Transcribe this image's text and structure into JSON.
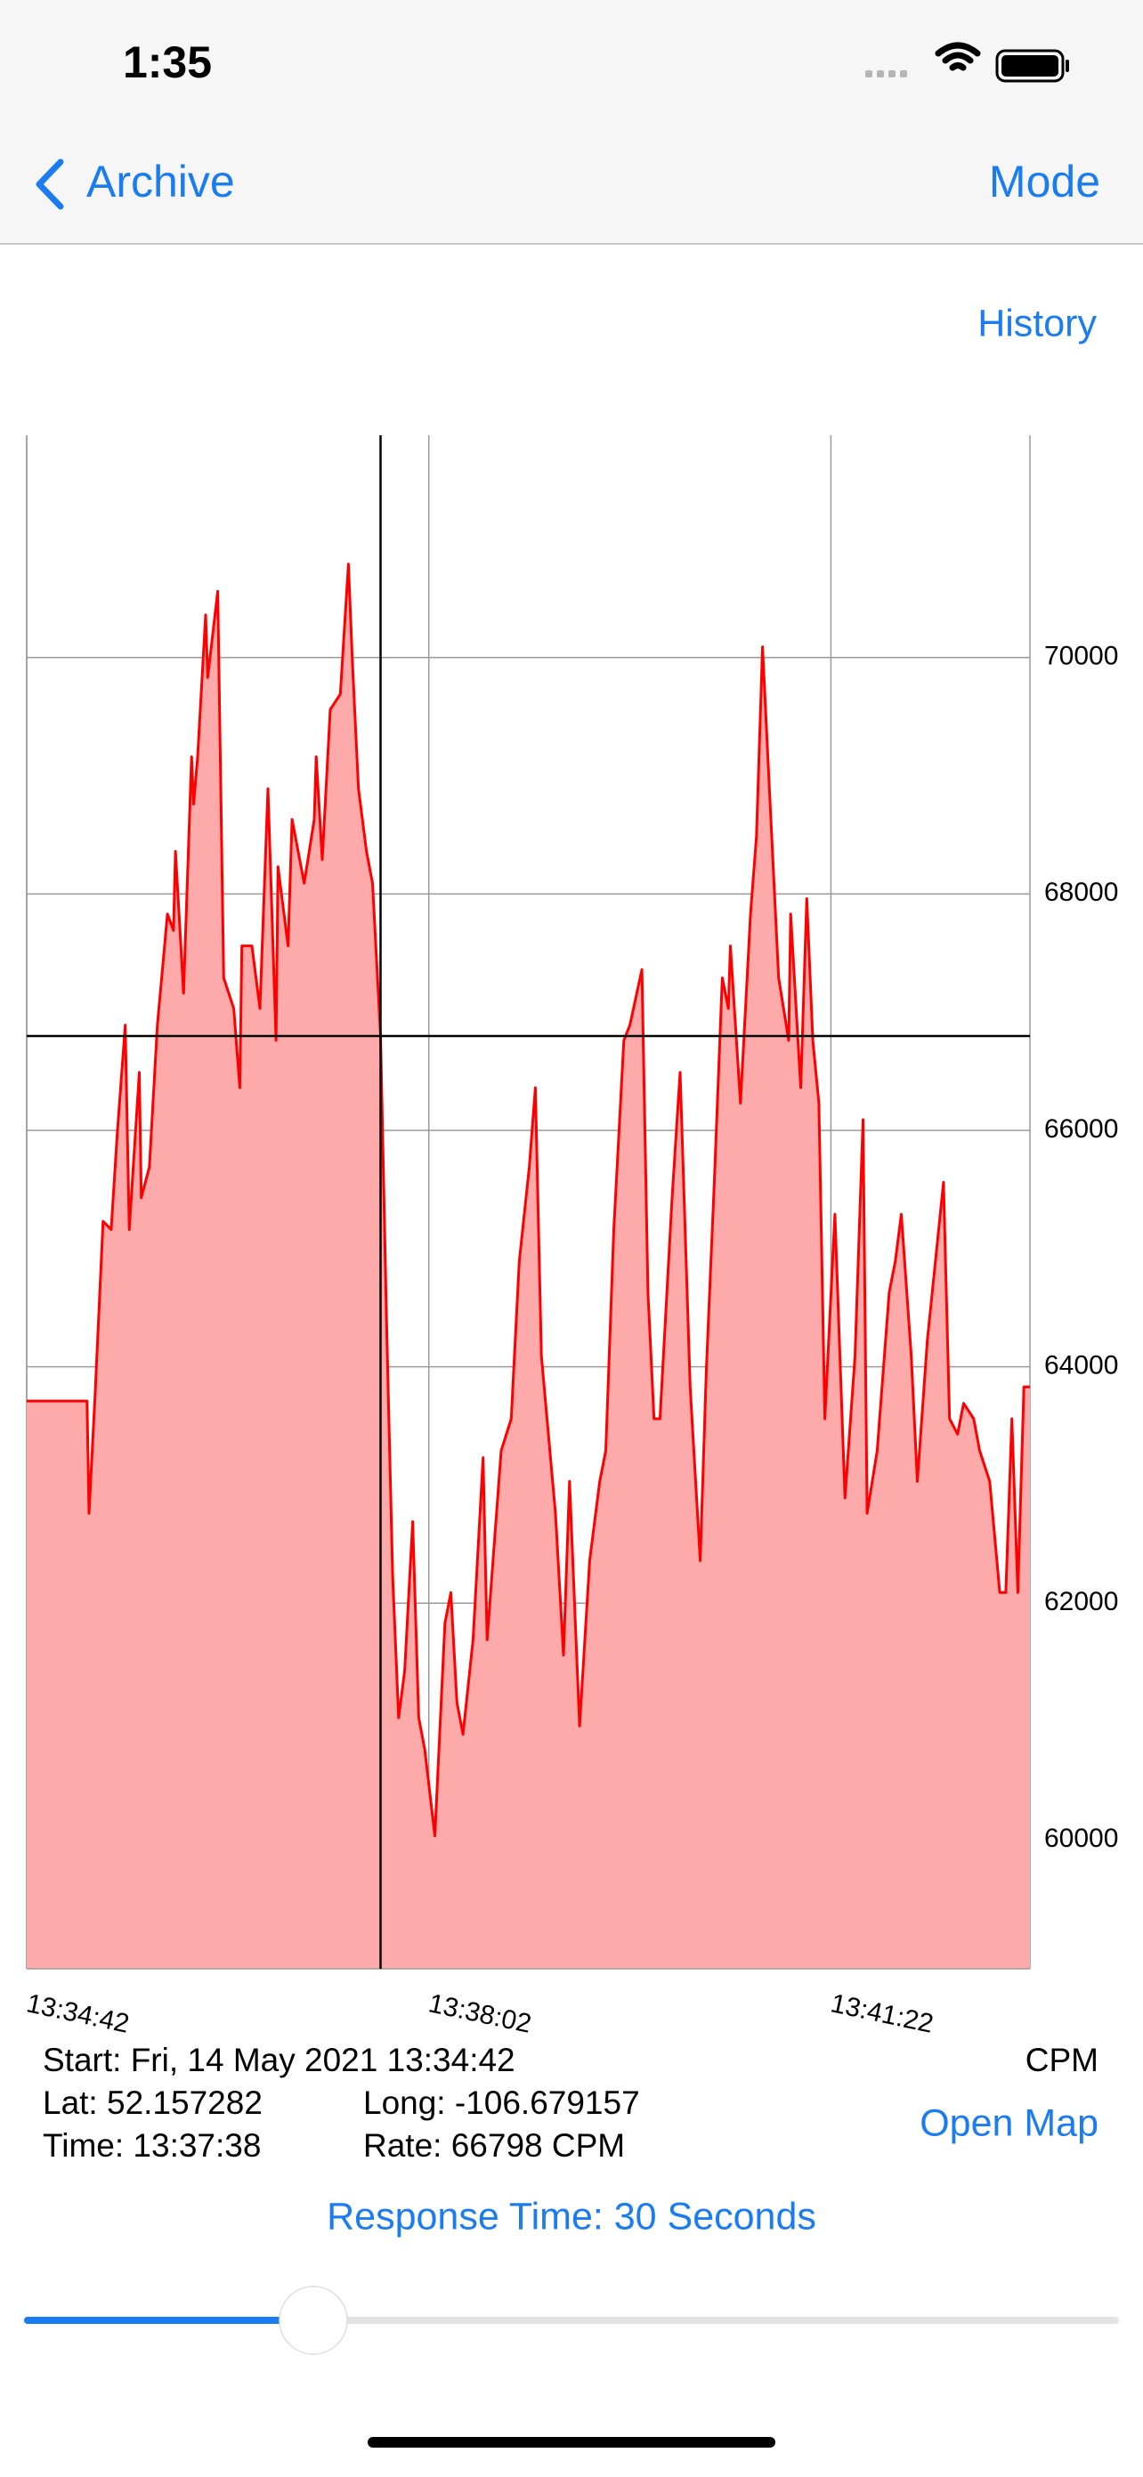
{
  "status_bar": {
    "time": "1:35"
  },
  "nav": {
    "back": "Archive",
    "right": "Mode"
  },
  "history_link": "History",
  "chart_data": {
    "type": "area",
    "y_label": "CPM",
    "x": [
      "13:34:42",
      "13:35:12",
      "13:35:13",
      "13:35:16",
      "13:35:20",
      "13:35:24",
      "13:35:27",
      "13:35:31",
      "13:35:33",
      "13:35:38",
      "13:35:39",
      "13:35:43",
      "13:35:47",
      "13:35:52",
      "13:35:55",
      "13:35:56",
      "13:36:00",
      "13:36:04",
      "13:36:05",
      "13:36:07",
      "13:36:11",
      "13:36:12",
      "13:36:17",
      "13:36:20",
      "13:36:25",
      "13:36:28",
      "13:36:29",
      "13:36:34",
      "13:36:38",
      "13:36:42",
      "13:36:46",
      "13:36:47",
      "13:36:52",
      "13:36:54",
      "13:37:00",
      "13:37:05",
      "13:37:06",
      "13:37:09",
      "13:37:13",
      "13:37:18",
      "13:37:22",
      "13:37:24",
      "13:37:27",
      "13:37:31",
      "13:37:34",
      "13:37:38",
      "13:37:41",
      "13:37:44",
      "13:37:47",
      "13:37:50",
      "13:37:54",
      "13:37:57",
      "13:38:00",
      "13:38:05",
      "13:38:10",
      "13:38:13",
      "13:38:16",
      "13:38:19",
      "13:38:24",
      "13:38:29",
      "13:38:31",
      "13:38:38",
      "13:38:43",
      "13:38:47",
      "13:38:52",
      "13:38:55",
      "13:38:58",
      "13:39:05",
      "13:39:09",
      "13:39:12",
      "13:39:17",
      "13:39:22",
      "13:39:27",
      "13:39:30",
      "13:39:34",
      "13:39:39",
      "13:39:42",
      "13:39:48",
      "13:39:51",
      "13:39:54",
      "13:39:57",
      "13:40:03",
      "13:40:07",
      "13:40:10",
      "13:40:12",
      "13:40:17",
      "13:40:20",
      "13:40:24",
      "13:40:28",
      "13:40:31",
      "13:40:32",
      "13:40:37",
      "13:40:42",
      "13:40:45",
      "13:40:48",
      "13:40:51",
      "13:40:56",
      "13:41:01",
      "13:41:02",
      "13:41:07",
      "13:41:10",
      "13:41:13",
      "13:41:16",
      "13:41:19",
      "13:41:24",
      "13:41:29",
      "13:41:34",
      "13:41:38",
      "13:41:40",
      "13:41:45",
      "13:41:51",
      "13:41:54",
      "13:41:57",
      "13:42:02",
      "13:42:05",
      "13:42:10",
      "13:42:14",
      "13:42:18",
      "13:42:21",
      "13:42:25",
      "13:42:28",
      "13:42:33",
      "13:42:36",
      "13:42:41",
      "13:42:46",
      "13:42:49",
      "13:42:52",
      "13:42:55",
      "13:42:58",
      "13:43:01"
    ],
    "values": [
      63710,
      63710,
      62760,
      63760,
      65230,
      65160,
      65960,
      66890,
      65160,
      66490,
      65430,
      65690,
      66890,
      67830,
      67690,
      68360,
      67160,
      69160,
      68760,
      69160,
      70360,
      69830,
      70560,
      67290,
      67030,
      66360,
      67560,
      67560,
      67030,
      68890,
      66760,
      68230,
      67560,
      68630,
      68090,
      68630,
      69160,
      68290,
      69560,
      69690,
      70790,
      69960,
      68890,
      68360,
      68090,
      66798,
      64360,
      62230,
      61030,
      61430,
      62690,
      61030,
      60760,
      60030,
      61830,
      62090,
      61160,
      60890,
      61690,
      63230,
      61690,
      63290,
      63560,
      64890,
      65690,
      66360,
      64090,
      62760,
      61560,
      63030,
      60960,
      62360,
      63030,
      63290,
      65160,
      66760,
      66890,
      67360,
      64630,
      63560,
      63560,
      65430,
      66490,
      64890,
      63830,
      62360,
      63960,
      65560,
      67290,
      67030,
      67560,
      66230,
      67830,
      68490,
      70090,
      69030,
      67290,
      66760,
      67830,
      66360,
      67960,
      66760,
      66230,
      63560,
      65290,
      62890,
      64090,
      66090,
      62760,
      63290,
      64630,
      64890,
      65290,
      64090,
      63030,
      64230,
      64890,
      65560,
      63560,
      63430,
      63690,
      63560,
      63290,
      63030,
      62090,
      62090,
      63560,
      62090,
      63830,
      63830
    ],
    "color": "#ff0000",
    "fill_color": "#ffaaaa",
    "xlim": [
      "13:34:42",
      "13:43:01"
    ],
    "xticks": [
      "13:34:42",
      "13:38:02",
      "13:41:22"
    ],
    "ylim": [
      58907,
      71880
    ],
    "yticks": [
      60000,
      62000,
      64000,
      66000,
      68000,
      70000
    ],
    "grid": true,
    "crosshair": {
      "x": "13:37:38",
      "y": 66798
    }
  },
  "info": {
    "start": "Start: Fri, 14 May 2021 13:34:42",
    "lat": "Lat: 52.157282",
    "long": "Long: -106.679157",
    "time_label": "Time:",
    "rate_label": "Rate:",
    "open_map": "Open Map"
  },
  "response_time": "Response Time: 30 Seconds"
}
